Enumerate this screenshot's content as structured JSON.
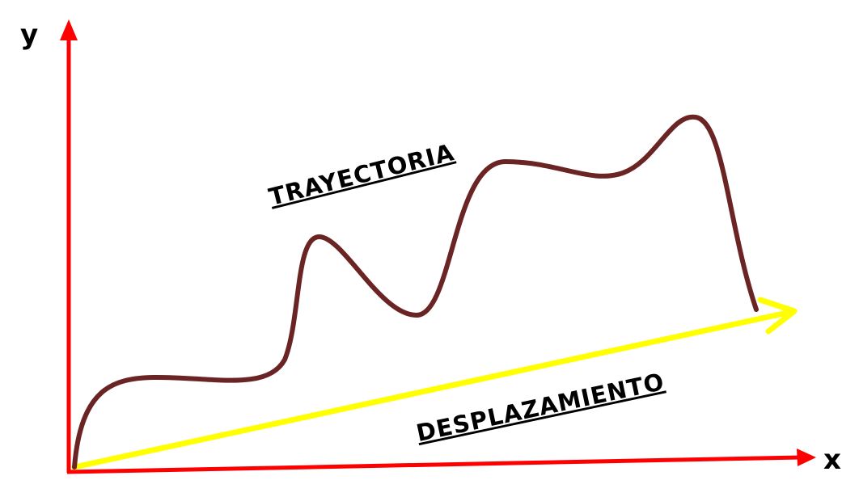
{
  "axes": {
    "y_label": "y",
    "x_label": "x"
  },
  "labels": {
    "trajectory": "TRAYECTORIA",
    "displacement": "DESPLAZAMIENTO"
  }
}
